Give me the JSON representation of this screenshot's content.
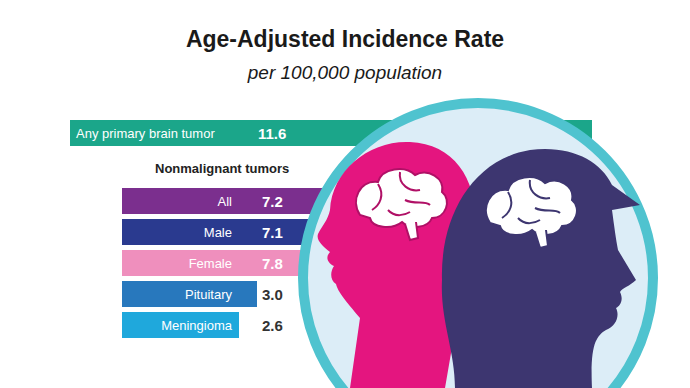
{
  "chart_data": [
    {
      "type": "bar",
      "title": "Age-Adjusted Incidence Rate",
      "subtitle": "per 100,000 population",
      "orientation": "horizontal",
      "categories": [
        "Any primary brain tumor"
      ],
      "values": [
        11.6
      ],
      "value_labels": [
        "11.6"
      ],
      "colors": [
        "#1ba68a"
      ],
      "data_labels": true,
      "tick_labels": false
    },
    {
      "type": "bar",
      "title": "Nonmalignant tumors",
      "orientation": "horizontal",
      "categories": [
        "All",
        "Male",
        "Female",
        "Pituitary",
        "Meningioma"
      ],
      "values": [
        7.2,
        7.1,
        7.8,
        3.0,
        2.6
      ],
      "value_labels": [
        "7.2",
        "7.1",
        "7.8",
        "3.0",
        "2.6"
      ],
      "colors": [
        "#7b2f8e",
        "#2a3a8f",
        "#ef8fbd",
        "#2878bd",
        "#1fa8dc"
      ],
      "data_labels": true,
      "tick_labels": false
    }
  ]
}
